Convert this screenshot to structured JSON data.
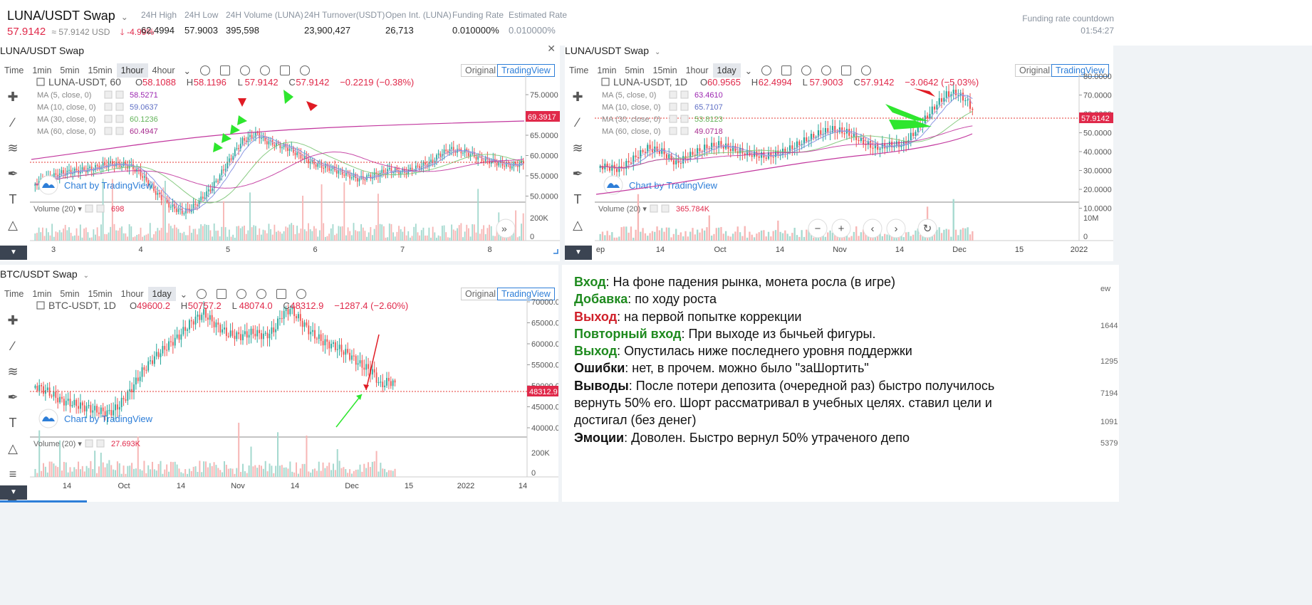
{
  "header": {
    "pair": "LUNA/USDT Swap",
    "price": "57.9142",
    "usd": "≈ 57.9142 USD",
    "change": "-4.99%",
    "stats": [
      {
        "label": "24H High",
        "value": "62.4994"
      },
      {
        "label": "24H Low",
        "value": "57.9003"
      },
      {
        "label": "24H Volume (LUNA)",
        "value": "395,598"
      },
      {
        "label": "24H Turnover(USDT)",
        "value": "23,900,427"
      },
      {
        "label": "Open Int. (LUNA)",
        "value": "26,713"
      },
      {
        "label": "Funding Rate",
        "value": "0.010000%"
      },
      {
        "label": "Estimated Rate",
        "value": "0.010000%"
      }
    ],
    "countdown_label": "Funding rate countdown",
    "countdown_value": "01:54:27"
  },
  "timeframes_a": [
    "Time",
    "1min",
    "5min",
    "15min",
    "1hour",
    "4hour"
  ],
  "timeframes_b": [
    "Time",
    "1min",
    "5min",
    "15min",
    "1hour",
    "1day"
  ],
  "view_buttons": {
    "original": "Original",
    "tradingview": "TradingView"
  },
  "watermark": "Chart by TradingView",
  "icons": {
    "tools": [
      "crosshair-icon",
      "trend-line-icon",
      "pitchfork-icon",
      "brush-icon",
      "text-icon",
      "pattern-icon",
      "measure-icon"
    ],
    "collapse": "chevron-down-icon"
  },
  "panels": [
    {
      "id": "luna-1h",
      "title": "LUNA/USDT Swap",
      "active_tf": "1hour",
      "legend": {
        "symbol": "LUNA-USDT, 60",
        "o": "58.1088",
        "h": "58.1196",
        "l": "57.9142",
        "c": "57.9142",
        "chg": "−0.2219 (−0.38%)"
      },
      "ma": [
        {
          "label": "MA (5, close, 0)",
          "value": "58.5271",
          "color": "#9c27b0"
        },
        {
          "label": "MA (10, close, 0)",
          "value": "59.0637",
          "color": "#5f6fc5"
        },
        {
          "label": "MA (30, close, 0)",
          "value": "60.1236",
          "color": "#63b35a"
        },
        {
          "label": "MA (60, close, 0)",
          "value": "60.4947",
          "color": "#a82c8f"
        }
      ],
      "price_label": "69.3917",
      "y_ticks": [
        "75.0000",
        "70.0000",
        "65.0000",
        "60.0000",
        "55.0000",
        "50.0000"
      ],
      "vol_label": "Volume (20)",
      "vol_value": "698",
      "vol_ticks": [
        "200K",
        "0"
      ],
      "x_ticks": [
        "3",
        "4",
        "5",
        "6",
        "7",
        "8"
      ]
    },
    {
      "id": "luna-1d",
      "title": "LUNA/USDT Swap",
      "active_tf": "1day",
      "legend": {
        "symbol": "LUNA-USDT, 1D",
        "o": "60.9565",
        "h": "62.4994",
        "l": "57.9003",
        "c": "57.9142",
        "chg": "−3.0642 (−5.03%)"
      },
      "ma": [
        {
          "label": "MA (5, close, 0)",
          "value": "63.4610",
          "color": "#9c27b0"
        },
        {
          "label": "MA (10, close, 0)",
          "value": "65.7107",
          "color": "#5f6fc5"
        },
        {
          "label": "MA (30, close, 0)",
          "value": "53.8123",
          "color": "#63b35a"
        },
        {
          "label": "MA (60, close, 0)",
          "value": "49.0718",
          "color": "#a82c8f"
        }
      ],
      "price_label": "57.9142",
      "y_ticks": [
        "80.0000",
        "70.0000",
        "60.0000",
        "50.0000",
        "40.0000",
        "30.0000",
        "20.0000",
        "10.0000"
      ],
      "vol_label": "Volume (20)",
      "vol_value": "365.784K",
      "vol_ticks": [
        "10M",
        "0"
      ],
      "x_ticks": [
        "ep",
        "14",
        "Oct",
        "14",
        "Nov",
        "14",
        "Dec",
        "15",
        "2022"
      ]
    },
    {
      "id": "btc-1d",
      "title": "BTC/USDT Swap",
      "active_tf": "1day",
      "legend": {
        "symbol": "BTC-USDT, 1D",
        "o": "49600.2",
        "h": "50757.2",
        "l": "48074.0",
        "c": "48312.9",
        "chg": "−1287.4 (−2.60%)"
      },
      "ma": [],
      "price_label": "48312.9",
      "y_ticks": [
        "70000.0",
        "65000.0",
        "60000.0",
        "55000.0",
        "50000.0",
        "45000.0",
        "40000.0"
      ],
      "vol_label": "Volume (20)",
      "vol_value": "27.693K",
      "vol_ticks": [
        "200K",
        "0"
      ],
      "x_ticks": [
        "14",
        "Oct",
        "14",
        "Nov",
        "14",
        "Dec",
        "15",
        "2022",
        "14"
      ]
    }
  ],
  "notes": [
    {
      "label": "Вход",
      "text": ": На фоне падения рынка, монета росла (в игре)",
      "tone": "g"
    },
    {
      "label": "Добавка",
      "text": ": по ходу роста",
      "tone": "g"
    },
    {
      "label": "Выход",
      "text": ": на первой попытке коррекции",
      "tone": "r"
    },
    {
      "label": "Повторный вход",
      "text": ": При выходе из бычьей фигуры.",
      "tone": "g"
    },
    {
      "label": "Выход",
      "text": ": Опустилась ниже последнего уровня поддержки",
      "tone": "g"
    },
    {
      "label": "Ошибки",
      "text": ": нет, в прочем. можно было \"заШортить\"",
      "tone": "k"
    },
    {
      "label": "Выводы",
      "text": ": После потери депозита (очередной раз) быстро получилось вернуть 50% его. Шорт рассматривал в учебных целях. ставил цели и достигал (без денег)",
      "tone": "k"
    },
    {
      "label": "Эмоции",
      "text": ": Доволен. Быстро вернул 50% утраченого депо",
      "tone": "k"
    }
  ],
  "right_strip": [
    "ew",
    "1644",
    "1295",
    "7194",
    "1091",
    "5379"
  ]
}
